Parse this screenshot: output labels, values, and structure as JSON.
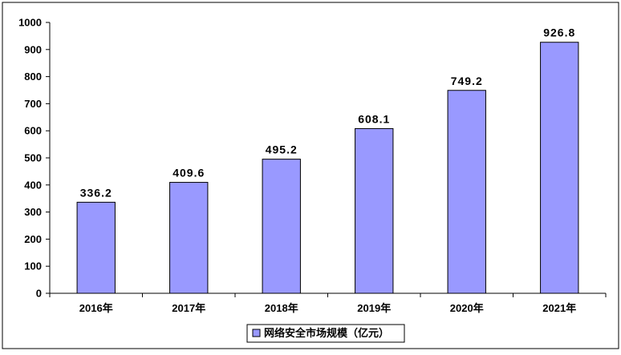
{
  "chart_data": {
    "type": "bar",
    "categories": [
      "2016年",
      "2017年",
      "2018年",
      "2019年",
      "2020年",
      "2021年"
    ],
    "series": [
      {
        "name": "网络安全市场规模（亿元）",
        "values": [
          336.2,
          409.6,
          495.2,
          608.1,
          749.2,
          926.8
        ]
      }
    ],
    "data_labels": [
      "336.2",
      "409.6",
      "495.2",
      "608.1",
      "749.2",
      "926.8"
    ],
    "ylim": [
      0,
      1000
    ],
    "yticks": [
      "0",
      "100",
      "200",
      "300",
      "400",
      "500",
      "600",
      "700",
      "800",
      "900",
      "1000"
    ],
    "legend_position": "bottom",
    "grid": false,
    "colors": {
      "bar": "#9999FF",
      "bar_stroke": "#000000",
      "axis": "#000000"
    }
  }
}
